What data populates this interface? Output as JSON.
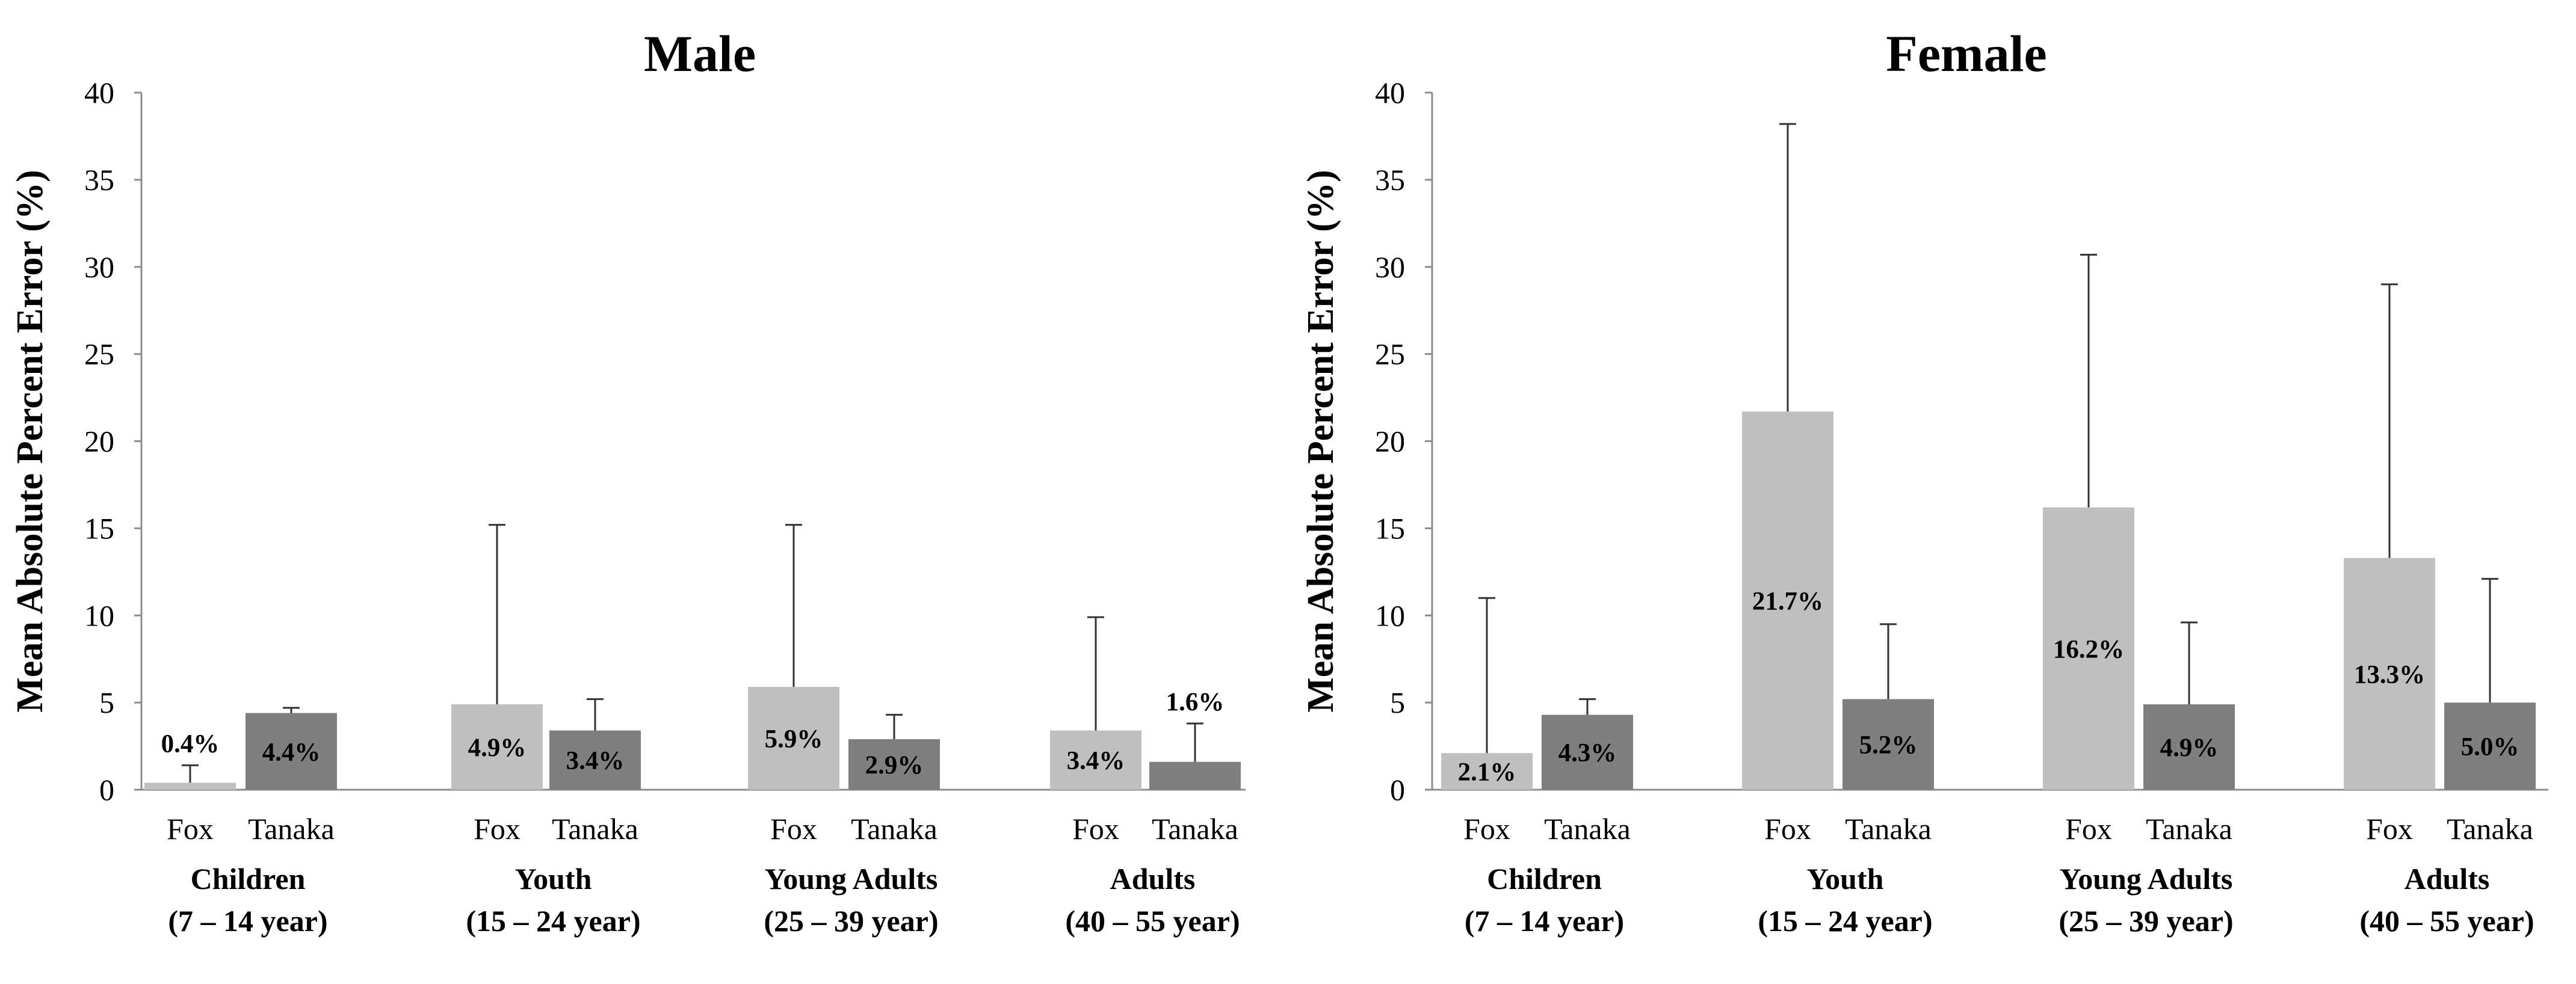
{
  "colors": {
    "fox": "#bfbfbf",
    "tanaka": "#7f7f7f",
    "axis": "#8c8c8c",
    "error_bar": "#333333"
  },
  "chart_data": [
    {
      "type": "bar",
      "title": "Male",
      "ylabel": "Mean Absolute Percent Error (%)",
      "xlabel": "",
      "ylim": [
        0,
        40
      ],
      "yticks": [
        "0",
        "5",
        "10",
        "15",
        "20",
        "25",
        "30",
        "35",
        "40"
      ],
      "grid": false,
      "groups": [
        {
          "line1": "Children",
          "line2": "(7 – 14 year)"
        },
        {
          "line1": "Youth",
          "line2": "(15 – 24 year)"
        },
        {
          "line1": "Young Adults",
          "line2": "(25 – 39 year)"
        },
        {
          "line1": "Adults",
          "line2": "(40 – 55 year)"
        }
      ],
      "series": [
        {
          "name": "Fox",
          "values": [
            0.4,
            4.9,
            5.9,
            3.4
          ],
          "labels": [
            "0.4%",
            "4.9%",
            "5.9%",
            "3.4%"
          ],
          "error_upper": [
            1.4,
            15.2,
            15.2,
            9.9
          ]
        },
        {
          "name": "Tanaka",
          "values": [
            4.4,
            3.4,
            2.9,
            1.6
          ],
          "labels": [
            "4.4%",
            "3.4%",
            "2.9%",
            "1.6%"
          ],
          "error_upper": [
            4.7,
            5.2,
            4.3,
            3.8
          ]
        }
      ]
    },
    {
      "type": "bar",
      "title": "Female",
      "ylabel": "Mean Absolute Percent Error (%)",
      "xlabel": "",
      "ylim": [
        0,
        40
      ],
      "yticks": [
        "0",
        "5",
        "10",
        "15",
        "20",
        "25",
        "30",
        "35",
        "40"
      ],
      "grid": false,
      "groups": [
        {
          "line1": "Children",
          "line2": "(7 – 14 year)"
        },
        {
          "line1": "Youth",
          "line2": "(15 – 24 year)"
        },
        {
          "line1": "Young Adults",
          "line2": "(25 – 39 year)"
        },
        {
          "line1": "Adults",
          "line2": "(40 – 55 year)"
        }
      ],
      "series": [
        {
          "name": "Fox",
          "values": [
            2.1,
            21.7,
            16.2,
            13.3
          ],
          "labels": [
            "2.1%",
            "21.7%",
            "16.2%",
            "13.3%"
          ],
          "error_upper": [
            11.0,
            38.2,
            30.7,
            29.0
          ]
        },
        {
          "name": "Tanaka",
          "values": [
            4.3,
            5.2,
            4.9,
            5.0
          ],
          "labels": [
            "4.3%",
            "5.2%",
            "4.9%",
            "5.0%"
          ],
          "error_upper": [
            5.2,
            9.5,
            9.6,
            12.1
          ]
        }
      ]
    }
  ]
}
